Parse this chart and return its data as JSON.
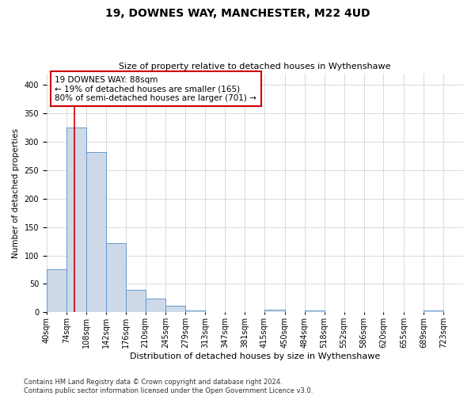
{
  "title": "19, DOWNES WAY, MANCHESTER, M22 4UD",
  "subtitle": "Size of property relative to detached houses in Wythenshawe",
  "xlabel": "Distribution of detached houses by size in Wythenshawe",
  "ylabel": "Number of detached properties",
  "footer": "Contains HM Land Registry data © Crown copyright and database right 2024.\nContains public sector information licensed under the Open Government Licence v3.0.",
  "bin_labels": [
    "40sqm",
    "74sqm",
    "108sqm",
    "142sqm",
    "176sqm",
    "210sqm",
    "245sqm",
    "279sqm",
    "313sqm",
    "347sqm",
    "381sqm",
    "415sqm",
    "450sqm",
    "484sqm",
    "518sqm",
    "552sqm",
    "586sqm",
    "620sqm",
    "655sqm",
    "689sqm",
    "723sqm"
  ],
  "bar_values": [
    75,
    325,
    282,
    122,
    39,
    24,
    11,
    4,
    0,
    0,
    0,
    5,
    0,
    3,
    0,
    0,
    0,
    0,
    0,
    3,
    0
  ],
  "bar_color": "#cdd9e8",
  "bar_edge_color": "#6699cc",
  "property_size": 88,
  "pct_smaller": 19,
  "n_smaller": 165,
  "pct_larger_semi": 80,
  "n_larger_semi": 701,
  "vline_color": "#cc0000",
  "ylim": [
    0,
    420
  ],
  "yticks": [
    0,
    50,
    100,
    150,
    200,
    250,
    300,
    350,
    400
  ],
  "bin_edges": [
    40,
    74,
    108,
    142,
    176,
    210,
    245,
    279,
    313,
    347,
    381,
    415,
    450,
    484,
    518,
    552,
    586,
    620,
    655,
    689,
    723,
    757
  ],
  "grid_color": "#cccccc",
  "background_color": "#ffffff",
  "title_fontsize": 10,
  "subtitle_fontsize": 8,
  "ylabel_fontsize": 7.5,
  "xlabel_fontsize": 8,
  "tick_fontsize": 7,
  "footer_fontsize": 6,
  "annotation_fontsize": 7.5
}
